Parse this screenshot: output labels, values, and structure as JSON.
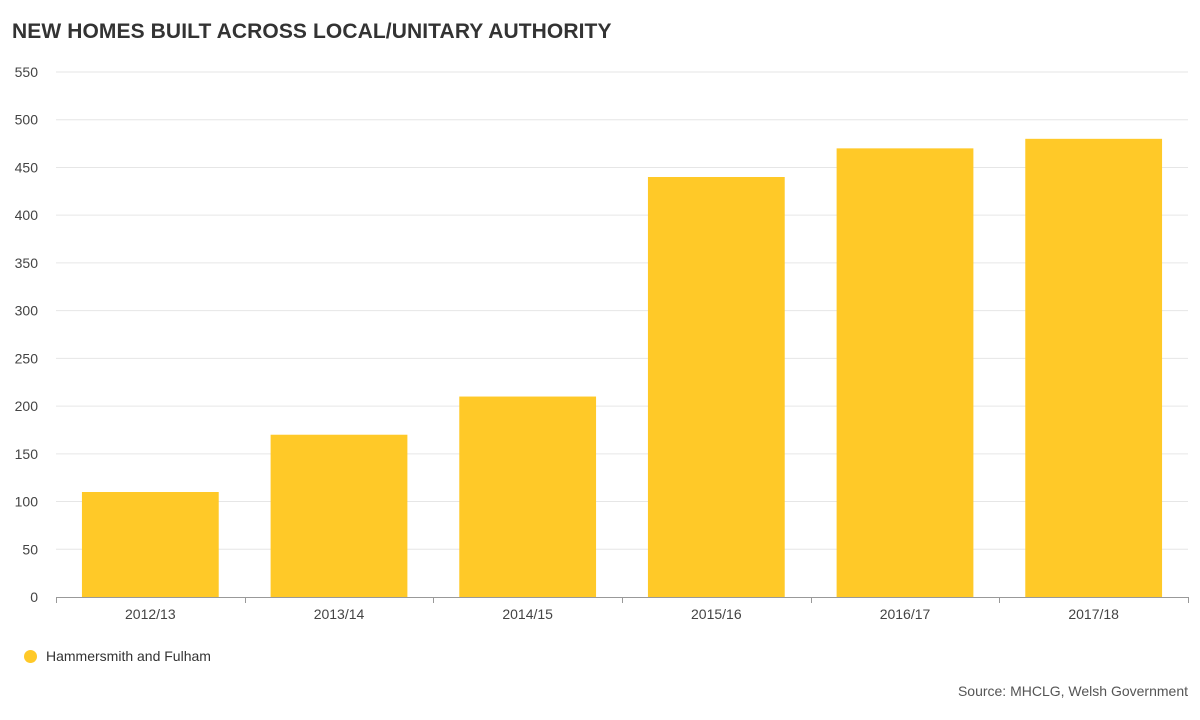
{
  "chart_data": {
    "type": "bar",
    "title": "NEW HOMES BUILT ACROSS LOCAL/UNITARY AUTHORITY",
    "categories": [
      "2012/13",
      "2013/14",
      "2014/15",
      "2015/16",
      "2016/17",
      "2017/18"
    ],
    "series": [
      {
        "name": "Hammersmith and Fulham",
        "values": [
          110,
          170,
          210,
          440,
          470,
          480
        ],
        "color": "#FFC928"
      }
    ],
    "ylim": [
      0,
      550
    ],
    "yticks": [
      0,
      50,
      100,
      150,
      200,
      250,
      300,
      350,
      400,
      450,
      500,
      550
    ],
    "xlabel": "",
    "ylabel": "",
    "grid": true,
    "legend_position": "bottom-left",
    "source": "Source: MHCLG, Welsh Government"
  }
}
